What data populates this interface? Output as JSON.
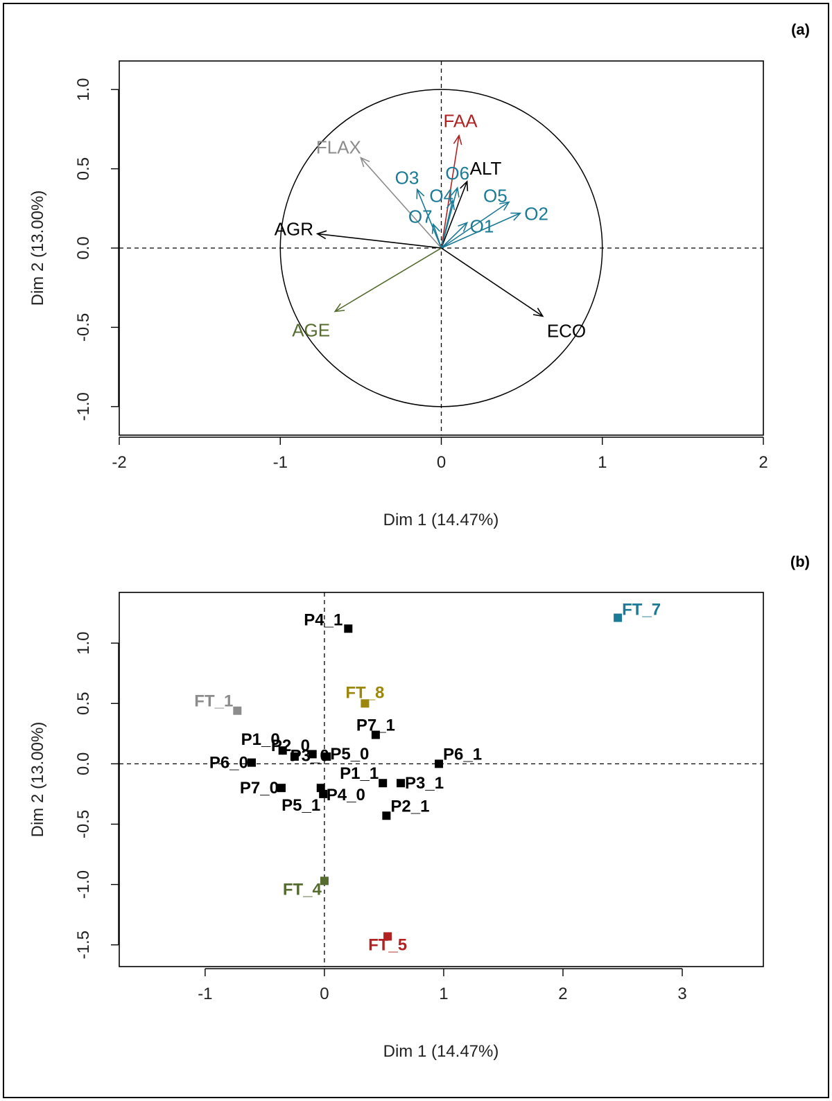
{
  "chart_data": [
    {
      "type": "scatter",
      "subtype": "variables-factor-map",
      "panel_label": "(a)",
      "xlabel": "Dim 1 (14.47%)",
      "ylabel": "Dim 2 (13.00%)",
      "xlim": [
        -2,
        2
      ],
      "ylim": [
        -1.18,
        1.18
      ],
      "x_ticks": [
        -2,
        -1,
        0,
        1,
        2
      ],
      "x_tick_labels": [
        "-2",
        "-1",
        "0",
        "1",
        "2"
      ],
      "y_ticks": [
        -1.0,
        -0.5,
        0.0,
        0.5,
        1.0
      ],
      "y_tick_labels": [
        "-1.0",
        "-0.5",
        "0.0",
        "0.5",
        "1.0"
      ],
      "circle_radius": 1,
      "colors": {
        "black": "#000000",
        "gray": "#8c8c8c",
        "red": "#b22222",
        "teal": "#1b7a95",
        "olive": "#556b2f"
      },
      "arrows": [
        {
          "label": "FAA",
          "x": 0.11,
          "y": 0.71,
          "color": "#b22222"
        },
        {
          "label": "FLAX",
          "x": -0.5,
          "y": 0.57,
          "color": "#8c8c8c"
        },
        {
          "label": "O3",
          "x": -0.15,
          "y": 0.37,
          "color": "#1b7a95"
        },
        {
          "label": "O6",
          "x": 0.1,
          "y": 0.38,
          "color": "#1b7a95"
        },
        {
          "label": "ALT",
          "x": 0.16,
          "y": 0.42,
          "color": "#000000"
        },
        {
          "label": "O4",
          "x": 0.07,
          "y": 0.3,
          "color": "#1b7a95"
        },
        {
          "label": "O5",
          "x": 0.42,
          "y": 0.29,
          "color": "#1b7a95"
        },
        {
          "label": "O2",
          "x": 0.49,
          "y": 0.22,
          "color": "#1b7a95"
        },
        {
          "label": "O7",
          "x": -0.05,
          "y": 0.15,
          "color": "#1b7a95"
        },
        {
          "label": "O1",
          "x": 0.16,
          "y": 0.16,
          "color": "#1b7a95"
        },
        {
          "label": "AGR",
          "x": -0.77,
          "y": 0.09,
          "color": "#000000"
        },
        {
          "label": "AGE",
          "x": -0.66,
          "y": -0.4,
          "color": "#556b2f"
        },
        {
          "label": "ECO",
          "x": 0.63,
          "y": -0.43,
          "color": "#000000"
        }
      ]
    },
    {
      "type": "scatter",
      "subtype": "individuals-factor-map",
      "panel_label": "(b)",
      "xlabel": "Dim 1 (14.47%)",
      "ylabel": "Dim 2 (13.00%)",
      "xlim": [
        -1.72,
        3.68
      ],
      "ylim": [
        -1.68,
        1.42
      ],
      "x_ticks": [
        -1,
        0,
        1,
        2,
        3
      ],
      "x_tick_labels": [
        "-1",
        "0",
        "1",
        "2",
        "3"
      ],
      "y_ticks": [
        -1.5,
        -1.0,
        -0.5,
        0.0,
        0.5,
        1.0
      ],
      "y_tick_labels": [
        "-1.5",
        "-1.0",
        "-0.5",
        "0.0",
        "0.5",
        "1.0"
      ],
      "points": [
        {
          "label": "FT_7",
          "x": 2.46,
          "y": 1.21,
          "color": "#1b7a95"
        },
        {
          "label": "P4_1",
          "x": 0.2,
          "y": 1.12,
          "color": "#000000"
        },
        {
          "label": "FT_1",
          "x": -0.73,
          "y": 0.44,
          "color": "#8c8c8c"
        },
        {
          "label": "FT_8",
          "x": 0.34,
          "y": 0.5,
          "color": "#9b870c"
        },
        {
          "label": "P7_1",
          "x": 0.43,
          "y": 0.24,
          "color": "#000000"
        },
        {
          "label": "P1_0",
          "x": -0.35,
          "y": 0.11,
          "color": "#000000"
        },
        {
          "label": "P2_0",
          "x": -0.25,
          "y": 0.06,
          "color": "#000000"
        },
        {
          "label": "P5_0",
          "x": 0.02,
          "y": 0.06,
          "color": "#000000"
        },
        {
          "label": "P6_0",
          "x": -0.61,
          "y": 0.01,
          "color": "#000000"
        },
        {
          "label": "P3_0",
          "x": -0.1,
          "y": 0.08,
          "color": "#000000"
        },
        {
          "label": "P6_1",
          "x": 0.96,
          "y": 0.0,
          "color": "#000000"
        },
        {
          "label": "P1_1",
          "x": 0.49,
          "y": -0.16,
          "color": "#000000"
        },
        {
          "label": "P3_1",
          "x": 0.64,
          "y": -0.16,
          "color": "#000000"
        },
        {
          "label": "P7_0",
          "x": -0.36,
          "y": -0.2,
          "color": "#000000"
        },
        {
          "label": "P4_0",
          "x": -0.03,
          "y": -0.2,
          "color": "#000000"
        },
        {
          "label": "P5_1",
          "x": -0.01,
          "y": -0.25,
          "color": "#000000"
        },
        {
          "label": "P2_1",
          "x": 0.52,
          "y": -0.43,
          "color": "#000000"
        },
        {
          "label": "FT_4",
          "x": 0.0,
          "y": -0.97,
          "color": "#556b2f"
        },
        {
          "label": "FT_5",
          "x": 0.53,
          "y": -1.43,
          "color": "#b22222"
        }
      ]
    }
  ]
}
